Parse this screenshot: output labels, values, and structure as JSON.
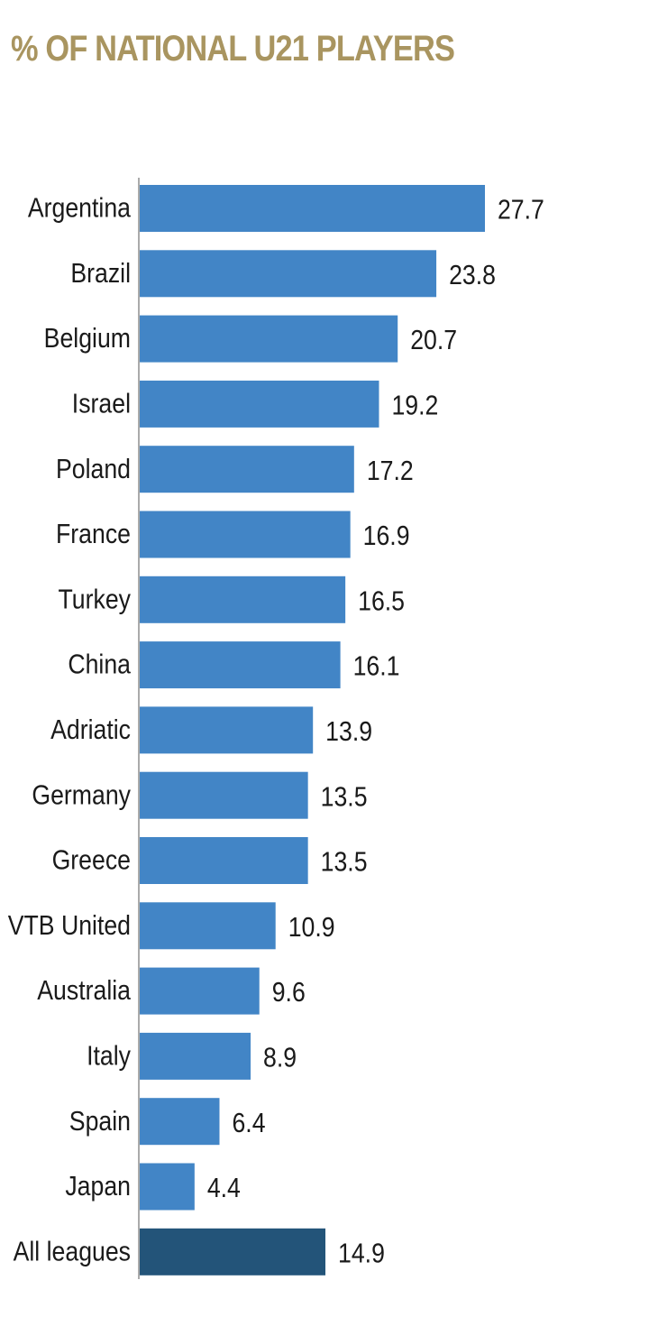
{
  "chart_data": {
    "type": "bar",
    "orientation": "horizontal",
    "title": "% OF NATIONAL U21 PLAYERS",
    "xlabel": "",
    "ylabel": "",
    "categories": [
      "Argentina",
      "Brazil",
      "Belgium",
      "Israel",
      "Poland",
      "France",
      "Turkey",
      "China",
      "Adriatic",
      "Germany",
      "Greece",
      "VTB United",
      "Australia",
      "Italy",
      "Spain",
      "Japan",
      "All leagues"
    ],
    "values": [
      27.7,
      23.8,
      20.7,
      19.2,
      17.2,
      16.9,
      16.5,
      16.1,
      13.9,
      13.5,
      13.5,
      10.9,
      9.6,
      8.9,
      6.4,
      4.4,
      14.9
    ],
    "value_labels": [
      "27.7",
      "23.8",
      "20.7",
      "19.2",
      "17.2",
      "16.9",
      "16.5",
      "16.1",
      "13.9",
      "13.5",
      "13.5",
      "10.9",
      "9.6",
      "8.9",
      "6.4",
      "4.4",
      "14.9"
    ],
    "xlim": [
      0,
      27.7
    ],
    "grid": false,
    "legend": "none",
    "colors": {
      "bar": "#4285c6",
      "highlight_bar": "#235479",
      "highlight_category": "All leagues",
      "title": "#a99560",
      "axis": "#aaaaaa",
      "text": "#1a1a1a"
    }
  }
}
